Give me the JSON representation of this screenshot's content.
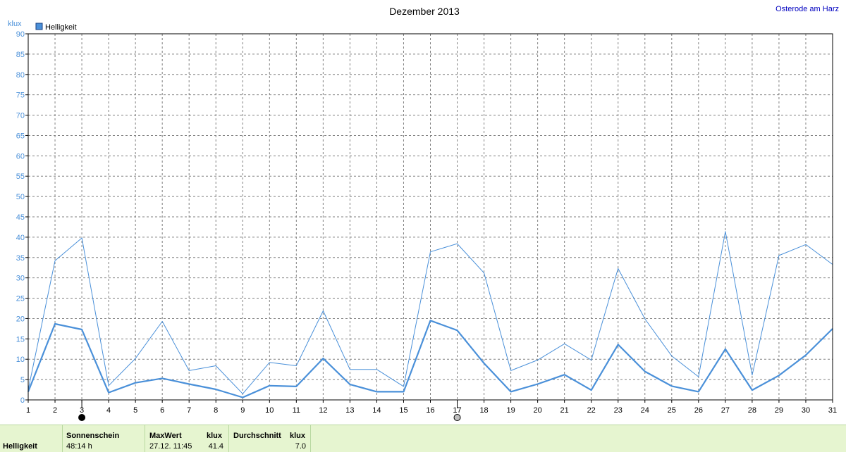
{
  "header": {
    "title": "Dezember 2013",
    "location": "Osterode am Harz"
  },
  "chart_data": {
    "type": "line",
    "title": "Dezember 2013",
    "ylabel": "klux",
    "ylim": [
      0,
      90
    ],
    "yticks": [
      0,
      5,
      10,
      15,
      20,
      25,
      30,
      35,
      40,
      45,
      50,
      55,
      60,
      65,
      70,
      75,
      80,
      85,
      90
    ],
    "x": [
      1,
      2,
      3,
      4,
      5,
      6,
      7,
      8,
      9,
      10,
      11,
      12,
      13,
      14,
      15,
      16,
      17,
      18,
      19,
      20,
      21,
      22,
      23,
      24,
      25,
      26,
      27,
      28,
      29,
      30,
      31
    ],
    "xlim": [
      1,
      31
    ],
    "grid": true,
    "legend": {
      "position": "top-left",
      "label": "Helligkeit",
      "color": "#4a90d9"
    },
    "series": [
      {
        "name": "Helligkeit",
        "style": "thin",
        "color": "#4a90d9",
        "values": [
          2.5,
          34.2,
          39.8,
          3.5,
          10.2,
          19.3,
          7.2,
          8.4,
          1.5,
          9.2,
          8.4,
          21.9,
          7.5,
          7.5,
          3.3,
          36.4,
          38.4,
          31.2,
          7.2,
          9.8,
          13.8,
          9.8,
          32.3,
          19.9,
          10.8,
          5.7,
          41.4,
          6.1,
          35.5,
          38.2,
          33.3
        ]
      },
      {
        "name": "Helligkeit",
        "style": "thick",
        "color": "#4a90d9",
        "values": [
          2.0,
          18.7,
          17.3,
          1.8,
          4.2,
          5.3,
          3.9,
          2.6,
          0.6,
          3.5,
          3.3,
          10.2,
          3.8,
          2.0,
          2.0,
          19.5,
          17.1,
          9.0,
          2.0,
          3.9,
          6.2,
          2.4,
          13.6,
          7.0,
          3.4,
          2.0,
          12.5,
          2.4,
          6.0,
          11.0,
          17.5
        ]
      }
    ],
    "markers": [
      {
        "x": 3,
        "type": "new-moon"
      },
      {
        "x": 17,
        "type": "full-moon"
      }
    ]
  },
  "stats": {
    "row_label": "Helligkeit",
    "sunshine_label": "Sonnenschein",
    "sunshine_value": "48:14 h",
    "max_label": "MaxWert",
    "max_unit": "klux",
    "max_date": "27.12.  11:45",
    "max_value": "41.4",
    "avg_label": "Durchschnitt",
    "avg_unit": "klux",
    "avg_value": "7.0"
  }
}
